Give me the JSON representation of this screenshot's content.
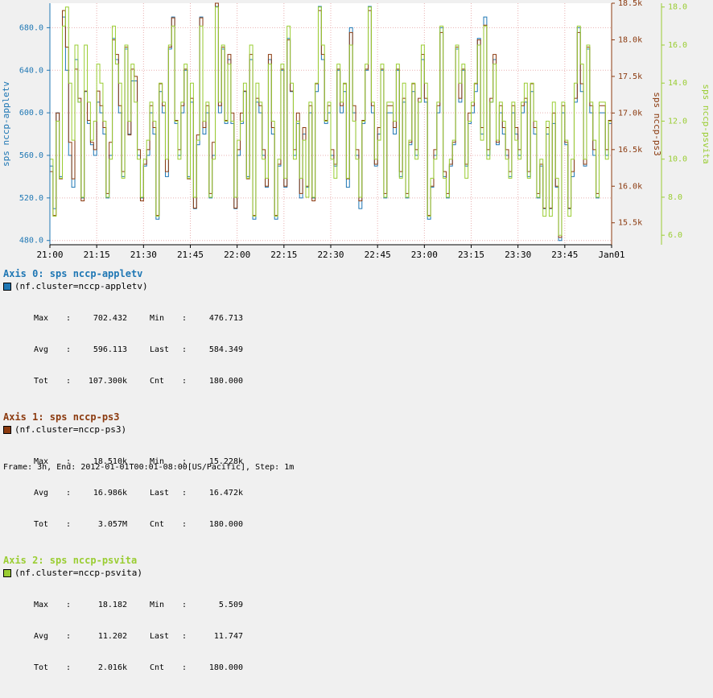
{
  "chart_data": {
    "type": "line",
    "x_ticks": [
      "21:00",
      "21:15",
      "21:30",
      "21:45",
      "22:00",
      "22:15",
      "22:30",
      "22:45",
      "23:00",
      "23:15",
      "23:30",
      "23:45",
      "Jan01"
    ],
    "axes": [
      {
        "label": "sps nccp-appletv",
        "color": "#1f77b4",
        "ylim": [
          476,
          703
        ],
        "ticks": [
          "480.0",
          "520.0",
          "560.0",
          "600.0",
          "640.0",
          "680.0"
        ],
        "tick_values": [
          480,
          520,
          560,
          600,
          640,
          680
        ]
      },
      {
        "label": "sps nccp-ps3",
        "color": "#8b3a0f",
        "ylim": [
          15.2,
          18.5
        ],
        "ticks": [
          "15.5k",
          "16.0k",
          "16.5k",
          "17.0k",
          "17.5k",
          "18.0k",
          "18.5k"
        ],
        "tick_values": [
          15.5,
          16.0,
          16.5,
          17.0,
          17.5,
          18.0,
          18.5
        ]
      },
      {
        "label": "sps nccp-psvita",
        "color": "#9acd32",
        "ylim": [
          5.5,
          18.2
        ],
        "ticks": [
          "6.0",
          "8.0",
          "10.0",
          "12.0",
          "14.0",
          "16.0",
          "18.0"
        ],
        "tick_values": [
          6,
          8,
          10,
          12,
          14,
          16,
          18
        ]
      }
    ],
    "series": [
      {
        "name": "(nf.cluster=nccp-appletv)",
        "axis": 0,
        "color": "#1f77b4",
        "values": [
          550,
          510,
          600,
          540,
          690,
          640,
          560,
          530,
          650,
          610,
          520,
          620,
          590,
          570,
          560,
          610,
          600,
          580,
          520,
          560,
          670,
          650,
          600,
          540,
          660,
          580,
          630,
          630,
          560,
          520,
          550,
          560,
          600,
          580,
          500,
          620,
          600,
          540,
          660,
          690,
          590,
          560,
          600,
          640,
          540,
          610,
          510,
          570,
          690,
          580,
          600,
          520,
          560,
          700,
          600,
          660,
          590,
          650,
          590,
          510,
          560,
          590,
          620,
          540,
          650,
          500,
          610,
          600,
          560,
          530,
          650,
          580,
          500,
          550,
          640,
          530,
          670,
          620,
          560,
          590,
          520,
          580,
          530,
          600,
          520,
          620,
          700,
          650,
          590,
          600,
          560,
          550,
          640,
          600,
          620,
          530,
          680,
          600,
          560,
          510,
          590,
          640,
          700,
          600,
          550,
          580,
          640,
          520,
          600,
          600,
          580,
          640,
          540,
          610,
          520,
          570,
          620,
          560,
          610,
          650,
          610,
          500,
          530,
          560,
          600,
          680,
          540,
          520,
          550,
          570,
          660,
          610,
          640,
          550,
          590,
          600,
          620,
          670,
          580,
          690,
          560,
          610,
          650,
          570,
          600,
          580,
          560,
          540,
          600,
          580,
          560,
          600,
          610,
          540,
          620,
          580,
          520,
          550,
          510,
          580,
          510,
          590,
          530,
          480,
          600,
          570,
          510,
          540,
          610,
          680,
          620,
          550,
          660,
          600,
          560,
          520,
          600,
          600,
          560,
          590
        ]
      },
      {
        "name": "(nf.cluster=nccp-ps3)",
        "axis": 1,
        "color": "#8b3a0f",
        "values": [
          16.2,
          15.6,
          17.0,
          16.1,
          18.4,
          17.9,
          16.6,
          16.1,
          17.6,
          17.2,
          15.8,
          17.3,
          16.9,
          16.6,
          16.5,
          17.3,
          17.1,
          16.8,
          15.9,
          16.6,
          18.0,
          17.8,
          17.1,
          16.2,
          17.9,
          16.7,
          17.6,
          17.5,
          16.5,
          15.8,
          16.3,
          16.5,
          17.1,
          16.8,
          15.6,
          17.4,
          17.1,
          16.2,
          17.9,
          18.3,
          16.9,
          16.5,
          17.1,
          17.6,
          16.1,
          17.2,
          15.7,
          16.7,
          18.3,
          16.8,
          17.1,
          15.9,
          16.6,
          18.5,
          17.1,
          17.9,
          16.9,
          17.8,
          17.0,
          15.7,
          16.5,
          17.0,
          17.3,
          16.1,
          17.8,
          15.6,
          17.2,
          17.1,
          16.5,
          16.0,
          17.8,
          16.8,
          15.6,
          16.3,
          17.6,
          16.0,
          18.0,
          17.3,
          16.5,
          17.0,
          15.9,
          16.8,
          16.0,
          17.1,
          15.8,
          17.4,
          18.4,
          17.8,
          16.9,
          17.1,
          16.5,
          16.3,
          17.6,
          17.1,
          17.4,
          16.1,
          18.1,
          17.1,
          16.5,
          15.8,
          16.9,
          17.6,
          18.4,
          17.1,
          16.3,
          16.8,
          17.6,
          15.9,
          17.1,
          17.1,
          16.8,
          17.6,
          16.2,
          17.2,
          15.9,
          16.6,
          17.4,
          16.5,
          17.2,
          17.8,
          17.2,
          15.6,
          16.0,
          16.5,
          17.1,
          18.1,
          16.2,
          15.9,
          16.3,
          16.6,
          17.9,
          17.2,
          17.6,
          16.3,
          17.0,
          17.1,
          17.4,
          18.0,
          16.8,
          18.2,
          16.5,
          17.2,
          17.8,
          16.6,
          17.1,
          16.8,
          16.5,
          16.2,
          17.1,
          16.8,
          16.5,
          17.1,
          17.2,
          16.2,
          17.4,
          16.8,
          15.9,
          16.3,
          15.7,
          16.8,
          15.7,
          17.0,
          16.0,
          15.3,
          17.1,
          16.6,
          15.7,
          16.2,
          17.2,
          18.1,
          17.4,
          16.3,
          17.9,
          17.1,
          16.5,
          15.9,
          17.1,
          17.1,
          16.5,
          16.9
        ]
      },
      {
        "name": "(nf.cluster=nccp-psvita)",
        "axis": 2,
        "color": "#9acd32",
        "values": [
          10,
          7,
          12,
          9,
          17,
          18,
          14,
          11,
          16,
          13,
          8,
          16,
          13,
          11,
          12,
          15,
          14,
          12,
          8,
          10,
          17,
          15,
          14,
          9,
          16,
          12,
          15,
          13,
          10,
          8,
          10,
          11,
          13,
          12,
          7,
          14,
          13,
          10,
          16,
          17,
          12,
          10,
          13,
          15,
          9,
          14,
          8,
          11,
          17,
          12,
          13,
          8,
          10,
          18,
          13,
          16,
          12,
          15,
          12,
          8,
          11,
          12,
          14,
          9,
          16,
          7,
          14,
          13,
          10,
          9,
          15,
          12,
          7,
          10,
          15,
          9,
          17,
          14,
          10,
          12,
          9,
          11,
          8,
          13,
          8,
          14,
          18,
          16,
          12,
          13,
          10,
          9,
          15,
          13,
          14,
          9,
          16,
          12,
          10,
          8,
          12,
          15,
          18,
          13,
          10,
          11,
          15,
          8,
          13,
          13,
          12,
          15,
          9,
          14,
          8,
          11,
          14,
          10,
          13,
          16,
          14,
          7,
          9,
          10,
          13,
          17,
          9,
          8,
          10,
          11,
          16,
          14,
          15,
          9,
          12,
          13,
          14,
          16,
          11,
          17,
          10,
          13,
          15,
          11,
          13,
          12,
          10,
          9,
          13,
          11,
          10,
          13,
          14,
          9,
          14,
          12,
          8,
          10,
          7,
          12,
          7,
          13,
          9,
          6,
          13,
          11,
          7,
          10,
          14,
          17,
          15,
          10,
          16,
          13,
          11,
          8,
          13,
          13,
          10,
          12
        ]
      }
    ],
    "grid": true
  },
  "legend": {
    "groups": [
      {
        "title": "Axis 0: sps nccp-appletv",
        "color": "#1f77b4",
        "series": "(nf.cluster=nccp-appletv)",
        "max": "702.432",
        "min": "476.713",
        "avg": "596.113",
        "last": "584.349",
        "tot": "107.300k",
        "cnt": "180.000"
      },
      {
        "title": "Axis 1: sps nccp-ps3",
        "color": "#8b3a0f",
        "series": "(nf.cluster=nccp-ps3)",
        "max": "18.510k",
        "min": "15.228k",
        "avg": "16.986k",
        "last": "16.472k",
        "tot": "3.057M",
        "cnt": "180.000"
      },
      {
        "title": "Axis 2: sps nccp-psvita",
        "color": "#9acd32",
        "series": "(nf.cluster=nccp-psvita)",
        "max": "18.182",
        "min": "5.509",
        "avg": "11.202",
        "last": "11.747",
        "tot": "2.016k",
        "cnt": "180.000"
      }
    ],
    "labels": {
      "max": "Max",
      "min": "Min",
      "avg": "Avg",
      "last": "Last",
      "tot": "Tot",
      "cnt": "Cnt",
      "sep": ":"
    }
  },
  "footer": "Frame: 3h, End: 2012-01-01T00:01-08:00[US/Pacific], Step: 1m"
}
